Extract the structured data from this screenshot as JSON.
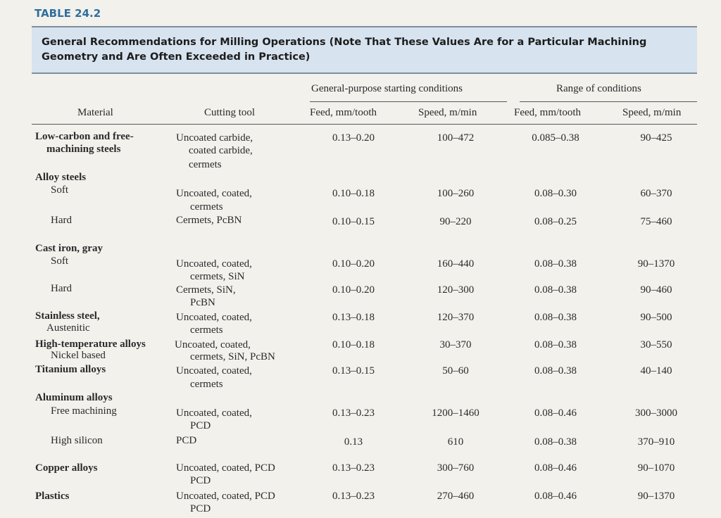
{
  "table_label": "TABLE 24.2",
  "caption": {
    "line1": "General Recommendations for Milling Operations (Note That These Values Are for a Particular Machining",
    "line2": "Geometry and Are Often Exceeded in Practice)"
  },
  "headers": {
    "group1": "General-purpose starting conditions",
    "group2": "Range of conditions",
    "material": "Material",
    "cutting_tool": "Cutting tool",
    "feed1": "Feed, mm/tooth",
    "speed1": "Speed, m/min",
    "feed2": "Feed, mm/tooth",
    "speed2": "Speed, m/min"
  },
  "rows": [
    {
      "material": "Low-carbon and free-",
      "material2": "machining steels",
      "tool": "Uncoated carbide,",
      "tool2": "coated carbide,",
      "tool3": "cermets",
      "feed": "0.13–0.20",
      "speed": "100–472",
      "rfeed": "0.085–0.38",
      "rspeed": "90–425"
    },
    {
      "material": "Alloy steels"
    },
    {
      "material": "Soft",
      "tool": "Uncoated, coated,",
      "tool2": "cermets",
      "feed": "0.10–0.18",
      "speed": "100–260",
      "rfeed": "0.08–0.30",
      "rspeed": "60–370"
    },
    {
      "material": "Hard",
      "tool": "Cermets, PcBN",
      "feed": "0.10–0.15",
      "speed": "90–220",
      "rfeed": "0.08–0.25",
      "rspeed": "75–460"
    },
    {
      "material": "Cast iron, gray"
    },
    {
      "material": "Soft",
      "tool": "Uncoated, coated,",
      "tool2": "cermets, SiN",
      "feed": "0.10–0.20",
      "speed": "160–440",
      "rfeed": "0.08–0.38",
      "rspeed": "90–1370"
    },
    {
      "material": "Hard",
      "tool": "Cermets, SiN,",
      "tool2": "PcBN",
      "feed": "0.10–0.20",
      "speed": "120–300",
      "rfeed": "0.08–0.38",
      "rspeed": "90–460"
    },
    {
      "material": "Stainless steel,",
      "material2": "Austenitic",
      "tool": "Uncoated, coated,",
      "tool2": "cermets",
      "feed": "0.13–0.18",
      "speed": "120–370",
      "rfeed": "0.08–0.38",
      "rspeed": "90–500"
    },
    {
      "material": "High-temperature alloys",
      "material2": "Nickel based",
      "tool": "Uncoated, coated,",
      "tool2": "cermets, SiN, PcBN",
      "feed": "0.10–0.18",
      "speed": "30–370",
      "rfeed": "0.08–0.38",
      "rspeed": "30–550"
    },
    {
      "material": "Titanium alloys",
      "tool": "Uncoated, coated,",
      "tool2": "cermets",
      "feed": "0.13–0.15",
      "speed": "50–60",
      "rfeed": "0.08–0.38",
      "rspeed": "40–140"
    },
    {
      "material": "Aluminum alloys"
    },
    {
      "material": "Free machining",
      "tool": "Uncoated, coated,",
      "tool2": "PCD",
      "feed": "0.13–0.23",
      "speed": "1200–1460",
      "rfeed": "0.08–0.46",
      "rspeed": "300–3000"
    },
    {
      "material": "High silicon",
      "tool": "PCD",
      "feed": "0.13",
      "speed": "610",
      "rfeed": "0.08–0.38",
      "rspeed": "370–910"
    },
    {
      "material": "Copper alloys",
      "tool": "Uncoated, coated, PCD",
      "tool2": "PCD",
      "feed": "0.13–0.23",
      "speed": "300–760",
      "rfeed": "0.08–0.46",
      "rspeed": "90–1070"
    },
    {
      "material": "Plastics",
      "tool": "Uncoated, coated, PCD",
      "tool2": "PCD",
      "feed": "0.13–0.23",
      "speed": "270–460",
      "rfeed": "0.08–0.46",
      "rspeed": "90–1370"
    }
  ]
}
